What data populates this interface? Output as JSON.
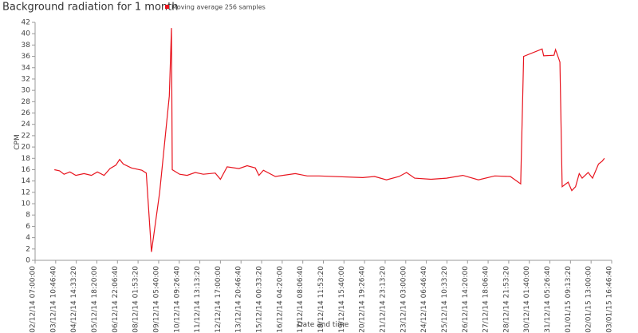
{
  "chart_data": {
    "type": "line",
    "title": "Background radiation for 1 month",
    "x_label": "Date and time",
    "y_label": "CPM",
    "xlim": [
      "02/12/14 07:00:00",
      "03/01/15 16:46:40"
    ],
    "xticks": [
      "02/12/14 07:00:00",
      "03/12/14 10:46:40",
      "04/12/14 14:33:20",
      "05/12/14 18:20:00",
      "06/12/14 22:06:40",
      "08/12/14 01:53:20",
      "09/12/14 05:40:00",
      "10/12/14 09:26:40",
      "11/12/14 13:13:20",
      "12/12/14 17:00:00",
      "13/12/14 20:46:40",
      "15/12/14 00:33:20",
      "16/12/14 04:20:00",
      "17/12/14 08:06:40",
      "18/12/14 11:53:20",
      "19/12/14 15:40:00",
      "20/12/14 19:26:40",
      "21/12/14 23:13:20",
      "23/12/14 03:00:00",
      "24/12/14 06:46:40",
      "25/12/14 10:33:20",
      "26/12/14 14:20:00",
      "27/12/14 18:06:40",
      "28/12/14 21:53:20",
      "30/12/14 01:40:00",
      "31/12/14 05:26:40",
      "01/01/15 09:13:20",
      "02/01/15 13:00:00",
      "03/01/15 16:46:40"
    ],
    "ylim": [
      0,
      42
    ],
    "yticks": [
      0,
      2,
      4,
      6,
      8,
      10,
      12,
      14,
      16,
      18,
      20,
      22,
      24,
      26,
      28,
      30,
      32,
      34,
      36,
      38,
      40,
      42
    ],
    "x": [
      "03/12/14 09:00:00",
      "03/12/14 16:00:00",
      "03/12/14 22:00:00",
      "04/12/14 06:00:00",
      "04/12/14 14:00:00",
      "05/12/14 01:00:00",
      "05/12/14 11:00:00",
      "05/12/14 19:00:00",
      "06/12/14 04:00:00",
      "06/12/14 12:00:00",
      "06/12/14 20:00:00",
      "07/12/14 01:00:00",
      "07/12/14 06:00:00",
      "07/12/14 17:00:00",
      "08/12/14 07:00:00",
      "08/12/14 13:00:00",
      "08/12/14 20:00:00",
      "09/12/14 07:00:00",
      "09/12/14 20:00:00",
      "09/12/14 23:00:00",
      "10/12/14 00:00:00",
      "10/12/14 10:00:00",
      "10/12/14 20:00:00",
      "11/12/14 07:00:00",
      "11/12/14 18:00:00",
      "12/12/14 10:00:00",
      "12/12/14 17:00:00",
      "13/12/14 02:00:00",
      "13/12/14 18:00:00",
      "14/12/14 05:00:00",
      "14/12/14 16:00:00",
      "14/12/14 21:00:00",
      "15/12/14 03:00:00",
      "15/12/14 19:00:00",
      "16/12/14 22:00:00",
      "17/12/14 14:00:00",
      "18/12/14 06:00:00",
      "20/12/14 17:00:00",
      "21/12/14 09:00:00",
      "22/12/14 01:00:00",
      "22/12/14 18:00:00",
      "23/12/14 04:00:00",
      "23/12/14 15:00:00",
      "24/12/14 13:00:00",
      "25/12/14 10:00:00",
      "26/12/14 08:00:00",
      "27/12/14 05:00:00",
      "28/12/14 03:00:00",
      "29/12/14 00:00:00",
      "29/12/14 14:00:00",
      "29/12/14 18:00:00",
      "30/12/14 19:00:00",
      "30/12/14 21:00:00",
      "31/12/14 11:00:00",
      "31/12/14 13:00:00",
      "31/12/14 19:00:00",
      "31/12/14 22:00:00",
      "01/01/15 06:00:00",
      "01/01/15 11:00:00",
      "01/01/15 16:00:00",
      "01/01/15 21:00:00",
      "02/01/15 01:00:00",
      "02/01/15 09:00:00",
      "02/01/15 15:00:00",
      "02/01/15 23:00:00",
      "03/01/15 04:00:00",
      "03/01/15 07:00:00"
    ],
    "series": [
      {
        "name": "Moving average 256 samples",
        "color": "#e8141e",
        "values": [
          16,
          15.8,
          15.2,
          15.6,
          15.0,
          15.3,
          15.0,
          15.6,
          15.0,
          16.2,
          16.8,
          17.8,
          17.0,
          16.3,
          15.9,
          15.4,
          1.5,
          12,
          29,
          41,
          16,
          15.2,
          15.0,
          15.5,
          15.2,
          15.4,
          14.3,
          16.5,
          16.2,
          16.7,
          16.3,
          15.0,
          15.9,
          14.8,
          15.3,
          14.9,
          14.9,
          14.6,
          14.8,
          14.2,
          14.8,
          15.5,
          14.5,
          14.3,
          14.5,
          15.0,
          14.2,
          14.9,
          14.8,
          13.5,
          36,
          37.3,
          36.1,
          36.2,
          37.2,
          35,
          13,
          13.8,
          12.3,
          13,
          15.3,
          14.5,
          15.5,
          14.5,
          17,
          17.5,
          18
        ]
      }
    ]
  }
}
